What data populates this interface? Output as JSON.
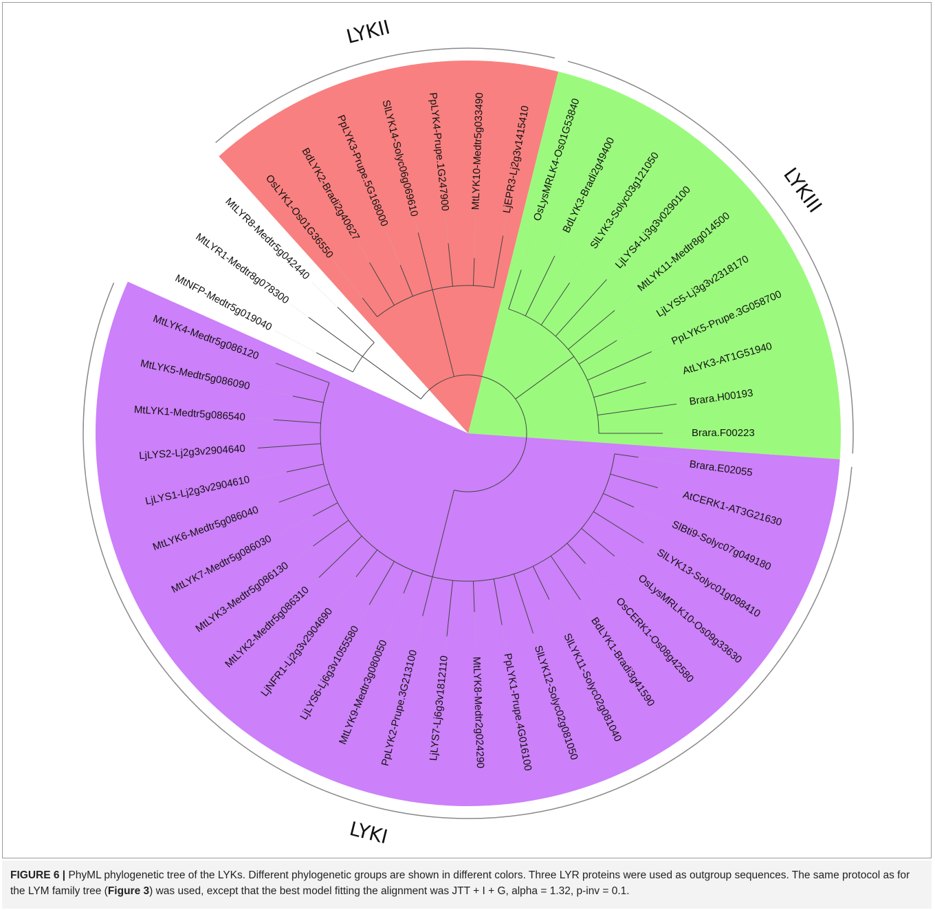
{
  "tree": {
    "groups": [
      {
        "color": "#ffffff",
        "leaves": [
          "MtNFP-Medtr5g019040",
          "MtLYR1-Medtr8g078300",
          "MtLYR8-Medtr5g042440"
        ]
      },
      {
        "name": "LYKII",
        "color": "#f98080",
        "leaves": [
          "OsLYK1-Os01G36550",
          "BdLYK2-Bradi2g40627",
          "PpLYK3-Prupe.5G168000",
          "SlLYK14-Solyc06g069610",
          "PpLYK4-Prupe.1G247900",
          "MtLYK10-Medtr5g033490",
          "LjEPR3-Lj2g3v1415410"
        ]
      },
      {
        "name": "LYKIII",
        "color": "#9bfa7d",
        "leaves": [
          "OsLysMRLK4-Os01G53840",
          "BdLYK3-Bradi2g49400",
          "SlLYK3-Solyc03g121050",
          "LjLYS4-Lj3g3v0290100",
          "MtLYK11-Medtr8g014500",
          "LjLYS5-Lj3g3v2318170",
          "PpLYK5-Prupe.3G058700",
          "AtLYK3-AT1G51940",
          "Brara.H00193",
          "Brara.F00223"
        ]
      },
      {
        "name": "LYKI",
        "color": "#cc80f9",
        "leaves": [
          "Brara.E02055",
          "AtCERK1-AT3G21630",
          "SlBti9-Solyc07g049180",
          "SlLYK13-Solyc01g098410",
          "OsLysMRLK10-Os09g33630",
          "OsCERK1-Os08g42580",
          "BdLYK1-Bradi3g41590",
          "SlLYK11-Solyc02g081040",
          "SlLYK12-Solyc02g081050",
          "PpLYK1-Prupe.4G016100",
          "MtLYK8-Medtr2g024290",
          "LjLYS7-Lj6g3v1812110",
          "PpLYK2-Prupe.3G213100",
          "MtLYK9-Medtr3g080050",
          "LjLYS6-Lj6g3v1055580",
          "LjNFR1-Lj2g3v2904690",
          "MtLYK2-Medtr5g086310",
          "MtLYK3-Medtr5g086130",
          "MtLYK7-Medtr5g086030",
          "MtLYK6-Medtr5g086040",
          "LjLYS1-Lj2g3v2904610",
          "LjLYS2-Lj2g3v2904640",
          "MtLYK1-Medtr5g086540",
          "MtLYK5-Medtr5g086090",
          "MtLYK4-Medtr5g086120"
        ]
      }
    ]
  },
  "caption": {
    "label": "FIGURE 6 |",
    "text_1": " PhyML phylogenetic tree of the LYKs. Different phylogenetic groups are shown in different colors. Three LYR proteins were used as outgroup sequences. The same protocol as for the LYM family tree (",
    "ref": "Figure 3",
    "text_2": ") was used, except that the best model fitting the alignment was JTT + I + G, alpha = 1.32, p-inv = 0.1."
  }
}
